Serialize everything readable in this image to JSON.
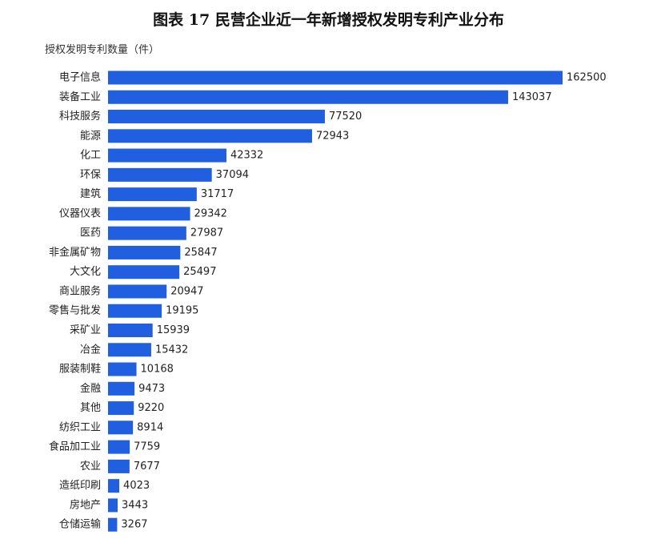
{
  "chart_data": {
    "type": "bar",
    "orientation": "horizontal",
    "title": "图表 17  民营企业近一年新增授权发明专利产业分布",
    "ylabel": "授权发明专利数量（件）",
    "categories": [
      "电子信息",
      "装备工业",
      "科技服务",
      "能源",
      "化工",
      "环保",
      "建筑",
      "仪器仪表",
      "医药",
      "非金属矿物",
      "大文化",
      "商业服务",
      "零售与批发",
      "采矿业",
      "冶金",
      "服装制鞋",
      "金融",
      "其他",
      "纺织工业",
      "食品加工业",
      "农业",
      "造纸印刷",
      "房地产",
      "仓储运输"
    ],
    "values": [
      162500,
      143037,
      77520,
      72943,
      42332,
      37094,
      31717,
      29342,
      27987,
      25847,
      25497,
      20947,
      19195,
      15939,
      15432,
      10168,
      9473,
      9220,
      8914,
      7759,
      7677,
      4023,
      3443,
      3267
    ],
    "xlim": [
      0,
      180000
    ],
    "bar_color": "#1f5fe0",
    "grid": false,
    "legend": "none"
  }
}
